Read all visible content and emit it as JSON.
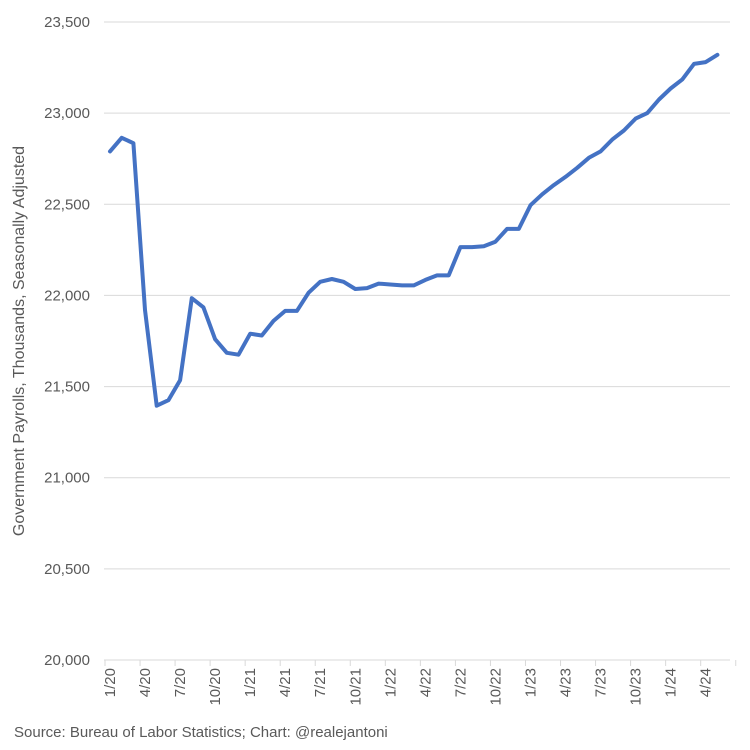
{
  "chart_data": {
    "type": "line",
    "ylabel": "Government Payrolls, Thousands, Seasonally Adjusted",
    "xlabel": "",
    "ylim": [
      20000,
      23500
    ],
    "yticks": [
      20000,
      20500,
      21000,
      21500,
      22000,
      22500,
      23000,
      23500
    ],
    "ytick_labels": [
      "20,000",
      "20,500",
      "21,000",
      "21,500",
      "22,000",
      "22,500",
      "23,000",
      "23,500"
    ],
    "grid": true,
    "x_start": "1/20",
    "x_tick_labels": [
      "1/20",
      "4/20",
      "7/20",
      "10/20",
      "1/21",
      "4/21",
      "7/21",
      "10/21",
      "1/22",
      "4/22",
      "7/22",
      "10/22",
      "1/23",
      "4/23",
      "7/23",
      "10/23",
      "1/24",
      "4/24"
    ],
    "series": [
      {
        "name": "Government Payrolls",
        "color": "#4472C4",
        "values": [
          22790,
          22865,
          22835,
          21920,
          21395,
          21425,
          21535,
          21985,
          21935,
          21760,
          21685,
          21675,
          21790,
          21780,
          21860,
          21915,
          21915,
          22015,
          22075,
          22090,
          22075,
          22035,
          22040,
          22065,
          22060,
          22055,
          22055,
          22085,
          22110,
          22110,
          22265,
          22265,
          22270,
          22295,
          22365,
          22365,
          22495,
          22555,
          22605,
          22650,
          22700,
          22755,
          22790,
          22855,
          22905,
          22970,
          23000,
          23075,
          23135,
          23185,
          23270,
          23280,
          23320
        ]
      }
    ]
  },
  "footer": {
    "source": "Source: Bureau of Labor Statistics; Chart: @realejantoni"
  }
}
